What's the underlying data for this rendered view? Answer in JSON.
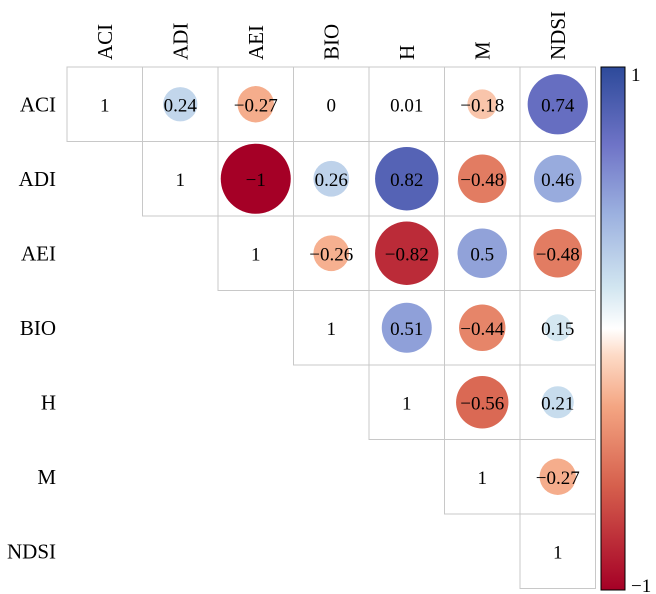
{
  "chart_data": {
    "type": "heatmap",
    "subtype": "correlation-upper-triangle-circles",
    "variables": [
      "ACI",
      "ADI",
      "AEI",
      "BIO",
      "H",
      "M",
      "NDSI"
    ],
    "matrix": [
      [
        1,
        0.24,
        -0.27,
        0,
        0.01,
        -0.18,
        0.74
      ],
      [
        null,
        1,
        -1,
        0.26,
        0.82,
        -0.48,
        0.46
      ],
      [
        null,
        null,
        1,
        -0.26,
        -0.82,
        0.5,
        -0.48
      ],
      [
        null,
        null,
        null,
        1,
        0.51,
        -0.44,
        0.15
      ],
      [
        null,
        null,
        null,
        null,
        1,
        -0.56,
        0.21
      ],
      [
        null,
        null,
        null,
        null,
        null,
        1,
        -0.27
      ],
      [
        null,
        null,
        null,
        null,
        null,
        null,
        1
      ]
    ],
    "cell_text": [
      [
        "1",
        "0.24",
        "−0.27",
        "0",
        "0.01",
        "−0.18",
        "0.74"
      ],
      [
        "",
        "1",
        "−1",
        "0.26",
        "0.82",
        "−0.48",
        "0.46"
      ],
      [
        "",
        "",
        "1",
        "−0.26",
        "−0.82",
        "0.5",
        "−0.48"
      ],
      [
        "",
        "",
        "",
        "1",
        "0.51",
        "−0.44",
        "0.15"
      ],
      [
        "",
        "",
        "",
        "",
        "1",
        "−0.56",
        "0.21"
      ],
      [
        "",
        "",
        "",
        "",
        "",
        "1",
        "−0.27"
      ],
      [
        "",
        "",
        "",
        "",
        "",
        "",
        "1"
      ]
    ],
    "colorbar": {
      "min": -1,
      "max": 1,
      "min_label": "−1",
      "max_label": "1",
      "colors": [
        "#a50026",
        "#d6604d",
        "#f4a582",
        "#fddbc7",
        "#ffffff",
        "#d1e5f0",
        "#9bb0df",
        "#6f74c7",
        "#2d4a9a"
      ]
    },
    "grid": true,
    "legend_placement": "right"
  }
}
